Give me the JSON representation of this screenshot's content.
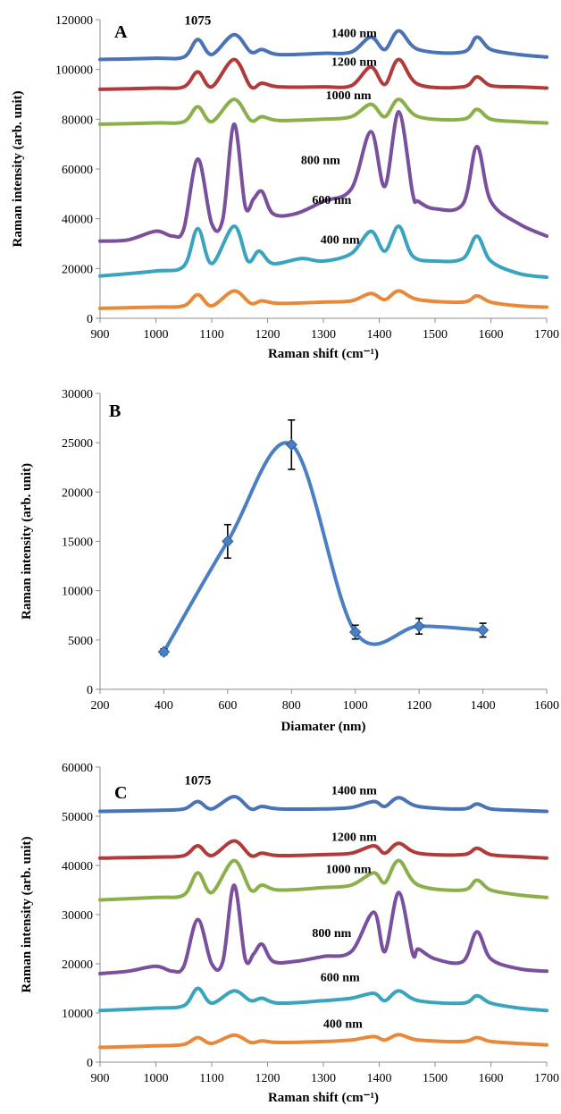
{
  "colors": {
    "1400 nm": "#4A73B6",
    "1200 nm": "#B23A3A",
    "1000 nm": "#8AB04A",
    "800 nm": "#7A4F9E",
    "600 nm": "#3AA3BE",
    "400 nm": "#E8893A",
    "axis": "#8c8c8c"
  },
  "chart_data": [
    {
      "type": "line",
      "panel": "A",
      "xlabel": "Raman shift (cm⁻¹)",
      "ylabel": "Raman intensity (arb. unit)",
      "xlim": [
        900,
        1700
      ],
      "ylim": [
        0,
        120000
      ],
      "xticks": [
        900,
        1000,
        1100,
        1200,
        1300,
        1400,
        1500,
        1600,
        1700
      ],
      "yticks": [
        0,
        20000,
        40000,
        60000,
        80000,
        100000,
        120000
      ],
      "grid": false,
      "annotations": [
        {
          "text": "1075",
          "x": 1075,
          "y": 118000
        }
      ],
      "series": [
        {
          "name": "1400 nm",
          "x": [
            900,
            1000,
            1050,
            1075,
            1100,
            1140,
            1170,
            1190,
            1220,
            1300,
            1350,
            1385,
            1410,
            1435,
            1470,
            1550,
            1575,
            1600,
            1650,
            1700
          ],
          "y": [
            104000,
            104500,
            105000,
            112000,
            106000,
            114000,
            107000,
            108000,
            106000,
            106500,
            107000,
            113000,
            108000,
            115500,
            108000,
            107000,
            113000,
            108000,
            106000,
            105000
          ]
        },
        {
          "name": "1200 nm",
          "x": [
            900,
            1000,
            1050,
            1075,
            1100,
            1140,
            1170,
            1190,
            1220,
            1300,
            1350,
            1385,
            1410,
            1435,
            1470,
            1550,
            1575,
            1600,
            1650,
            1700
          ],
          "y": [
            92000,
            92500,
            93000,
            99000,
            93000,
            104000,
            93000,
            94500,
            93000,
            93000,
            93500,
            101000,
            94000,
            104000,
            94000,
            93000,
            97000,
            93500,
            93000,
            92500
          ]
        },
        {
          "name": "1000 nm",
          "x": [
            900,
            1000,
            1050,
            1075,
            1100,
            1140,
            1170,
            1190,
            1220,
            1300,
            1350,
            1385,
            1410,
            1435,
            1470,
            1550,
            1575,
            1600,
            1650,
            1700
          ],
          "y": [
            78000,
            78500,
            79000,
            85000,
            79000,
            88000,
            79500,
            81000,
            79500,
            80000,
            81000,
            86000,
            81000,
            88000,
            81000,
            80000,
            84000,
            80000,
            79000,
            78500
          ]
        },
        {
          "name": "800 nm",
          "x": [
            900,
            950,
            1000,
            1030,
            1050,
            1075,
            1100,
            1120,
            1140,
            1160,
            1175,
            1190,
            1210,
            1250,
            1300,
            1350,
            1385,
            1410,
            1435,
            1460,
            1470,
            1500,
            1550,
            1575,
            1600,
            1650,
            1700
          ],
          "y": [
            31000,
            31500,
            35000,
            33000,
            36000,
            64000,
            38000,
            40000,
            78000,
            45000,
            48000,
            51000,
            42000,
            42000,
            47000,
            52000,
            75000,
            53000,
            83000,
            50000,
            47000,
            44000,
            46000,
            69000,
            47000,
            38000,
            33000
          ]
        },
        {
          "name": "600 nm",
          "x": [
            900,
            1000,
            1050,
            1075,
            1100,
            1140,
            1165,
            1185,
            1210,
            1260,
            1300,
            1350,
            1385,
            1410,
            1435,
            1460,
            1500,
            1550,
            1575,
            1600,
            1650,
            1700
          ],
          "y": [
            17000,
            19000,
            21000,
            36000,
            22000,
            37000,
            23000,
            27000,
            22000,
            24000,
            23000,
            26000,
            35000,
            27000,
            37000,
            25000,
            23000,
            24000,
            33000,
            23000,
            18000,
            16500
          ]
        },
        {
          "name": "400 nm",
          "x": [
            900,
            1000,
            1050,
            1075,
            1100,
            1140,
            1170,
            1190,
            1220,
            1300,
            1350,
            1385,
            1410,
            1435,
            1470,
            1550,
            1575,
            1600,
            1650,
            1700
          ],
          "y": [
            4000,
            4500,
            5000,
            9500,
            5000,
            11000,
            6000,
            7000,
            6000,
            6500,
            7000,
            10000,
            7500,
            11000,
            7500,
            6500,
            9000,
            6500,
            5000,
            4500
          ]
        }
      ],
      "series_label_positions": [
        {
          "name": "1400 nm",
          "x": 1355,
          "y": 113000
        },
        {
          "name": "1200 nm",
          "x": 1355,
          "y": 101500
        },
        {
          "name": "1000 nm",
          "x": 1345,
          "y": 88000
        },
        {
          "name": "800 nm",
          "x": 1295,
          "y": 62000
        },
        {
          "name": "600 nm",
          "x": 1315,
          "y": 46000
        },
        {
          "name": "400 nm",
          "x": 1330,
          "y": 30000
        }
      ]
    },
    {
      "type": "line",
      "panel": "B",
      "xlabel": "Diamater (nm)",
      "ylabel": "Raman intensity (arb. unit)",
      "xlim": [
        200,
        1600
      ],
      "ylim": [
        0,
        30000
      ],
      "xticks": [
        200,
        400,
        600,
        800,
        1000,
        1200,
        1400,
        1600
      ],
      "yticks": [
        0,
        5000,
        10000,
        15000,
        20000,
        25000,
        30000
      ],
      "grid": false,
      "series": [
        {
          "name": "",
          "x": [
            400,
            600,
            800,
            1000,
            1200,
            1400
          ],
          "y": [
            3800,
            15000,
            24800,
            5800,
            6400,
            6000
          ],
          "error": [
            300,
            1700,
            2500,
            700,
            800,
            700
          ]
        }
      ]
    },
    {
      "type": "line",
      "panel": "C",
      "xlabel": "Raman shift (cm⁻¹)",
      "ylabel": "Raman intensity (arb. unit)",
      "xlim": [
        900,
        1700
      ],
      "ylim": [
        0,
        60000
      ],
      "xticks": [
        900,
        1000,
        1100,
        1200,
        1300,
        1400,
        1500,
        1600,
        1700
      ],
      "yticks": [
        0,
        10000,
        20000,
        30000,
        40000,
        50000,
        60000
      ],
      "grid": false,
      "annotations": [
        {
          "text": "1075",
          "x": 1075,
          "y": 56500
        }
      ],
      "series": [
        {
          "name": "1400 nm",
          "x": [
            900,
            1000,
            1050,
            1075,
            1100,
            1140,
            1170,
            1190,
            1220,
            1300,
            1350,
            1390,
            1410,
            1435,
            1470,
            1550,
            1575,
            1600,
            1650,
            1700
          ],
          "y": [
            51000,
            51200,
            51500,
            53000,
            51500,
            54000,
            51500,
            52000,
            51500,
            51500,
            51800,
            53000,
            52000,
            53800,
            52000,
            51500,
            52500,
            51500,
            51200,
            51000
          ]
        },
        {
          "name": "1200 nm",
          "x": [
            900,
            1000,
            1050,
            1075,
            1100,
            1140,
            1170,
            1190,
            1220,
            1300,
            1350,
            1390,
            1410,
            1435,
            1470,
            1550,
            1575,
            1600,
            1650,
            1700
          ],
          "y": [
            41500,
            41700,
            42000,
            44000,
            42000,
            45000,
            42000,
            42500,
            42000,
            42200,
            42500,
            44000,
            42500,
            44500,
            42500,
            42200,
            43500,
            42200,
            41800,
            41500
          ]
        },
        {
          "name": "1000 nm",
          "x": [
            900,
            1000,
            1050,
            1075,
            1100,
            1140,
            1170,
            1190,
            1220,
            1300,
            1350,
            1390,
            1410,
            1435,
            1470,
            1550,
            1575,
            1600,
            1650,
            1700
          ],
          "y": [
            33000,
            33500,
            34000,
            38500,
            34500,
            41000,
            35000,
            36000,
            35000,
            35500,
            36000,
            38500,
            36500,
            41000,
            36000,
            35000,
            37000,
            35000,
            34000,
            33500
          ]
        },
        {
          "name": "800 nm",
          "x": [
            900,
            950,
            1000,
            1030,
            1050,
            1075,
            1100,
            1120,
            1140,
            1160,
            1175,
            1190,
            1210,
            1250,
            1300,
            1350,
            1390,
            1410,
            1435,
            1460,
            1470,
            1500,
            1550,
            1575,
            1600,
            1650,
            1700
          ],
          "y": [
            18000,
            18500,
            19500,
            18500,
            19500,
            29000,
            20000,
            20500,
            36000,
            21000,
            22000,
            24000,
            20500,
            20500,
            21500,
            22500,
            30500,
            22500,
            34500,
            22000,
            23000,
            21000,
            20500,
            26500,
            21000,
            19000,
            18500
          ]
        },
        {
          "name": "600 nm",
          "x": [
            900,
            1000,
            1050,
            1075,
            1100,
            1140,
            1170,
            1190,
            1220,
            1300,
            1350,
            1390,
            1410,
            1435,
            1470,
            1550,
            1575,
            1600,
            1650,
            1700
          ],
          "y": [
            10500,
            11000,
            11500,
            15000,
            12000,
            14500,
            12500,
            13000,
            12000,
            12500,
            13000,
            14000,
            12500,
            14500,
            12500,
            12000,
            13500,
            12000,
            11000,
            10500
          ]
        },
        {
          "name": "400 nm",
          "x": [
            900,
            1000,
            1050,
            1075,
            1100,
            1140,
            1170,
            1190,
            1220,
            1300,
            1350,
            1390,
            1410,
            1435,
            1470,
            1550,
            1575,
            1600,
            1650,
            1700
          ],
          "y": [
            3000,
            3300,
            3600,
            5000,
            3800,
            5500,
            4000,
            4300,
            4000,
            4200,
            4500,
            5200,
            4500,
            5600,
            4500,
            4200,
            5000,
            4200,
            3800,
            3500
          ]
        }
      ],
      "series_label_positions": [
        {
          "name": "1400 nm",
          "x": 1355,
          "y": 54500
        },
        {
          "name": "1200 nm",
          "x": 1355,
          "y": 45000
        },
        {
          "name": "1000 nm",
          "x": 1345,
          "y": 38500
        },
        {
          "name": "800 nm",
          "x": 1315,
          "y": 25500
        },
        {
          "name": "600 nm",
          "x": 1330,
          "y": 16500
        },
        {
          "name": "400 nm",
          "x": 1335,
          "y": 7000
        }
      ]
    }
  ]
}
